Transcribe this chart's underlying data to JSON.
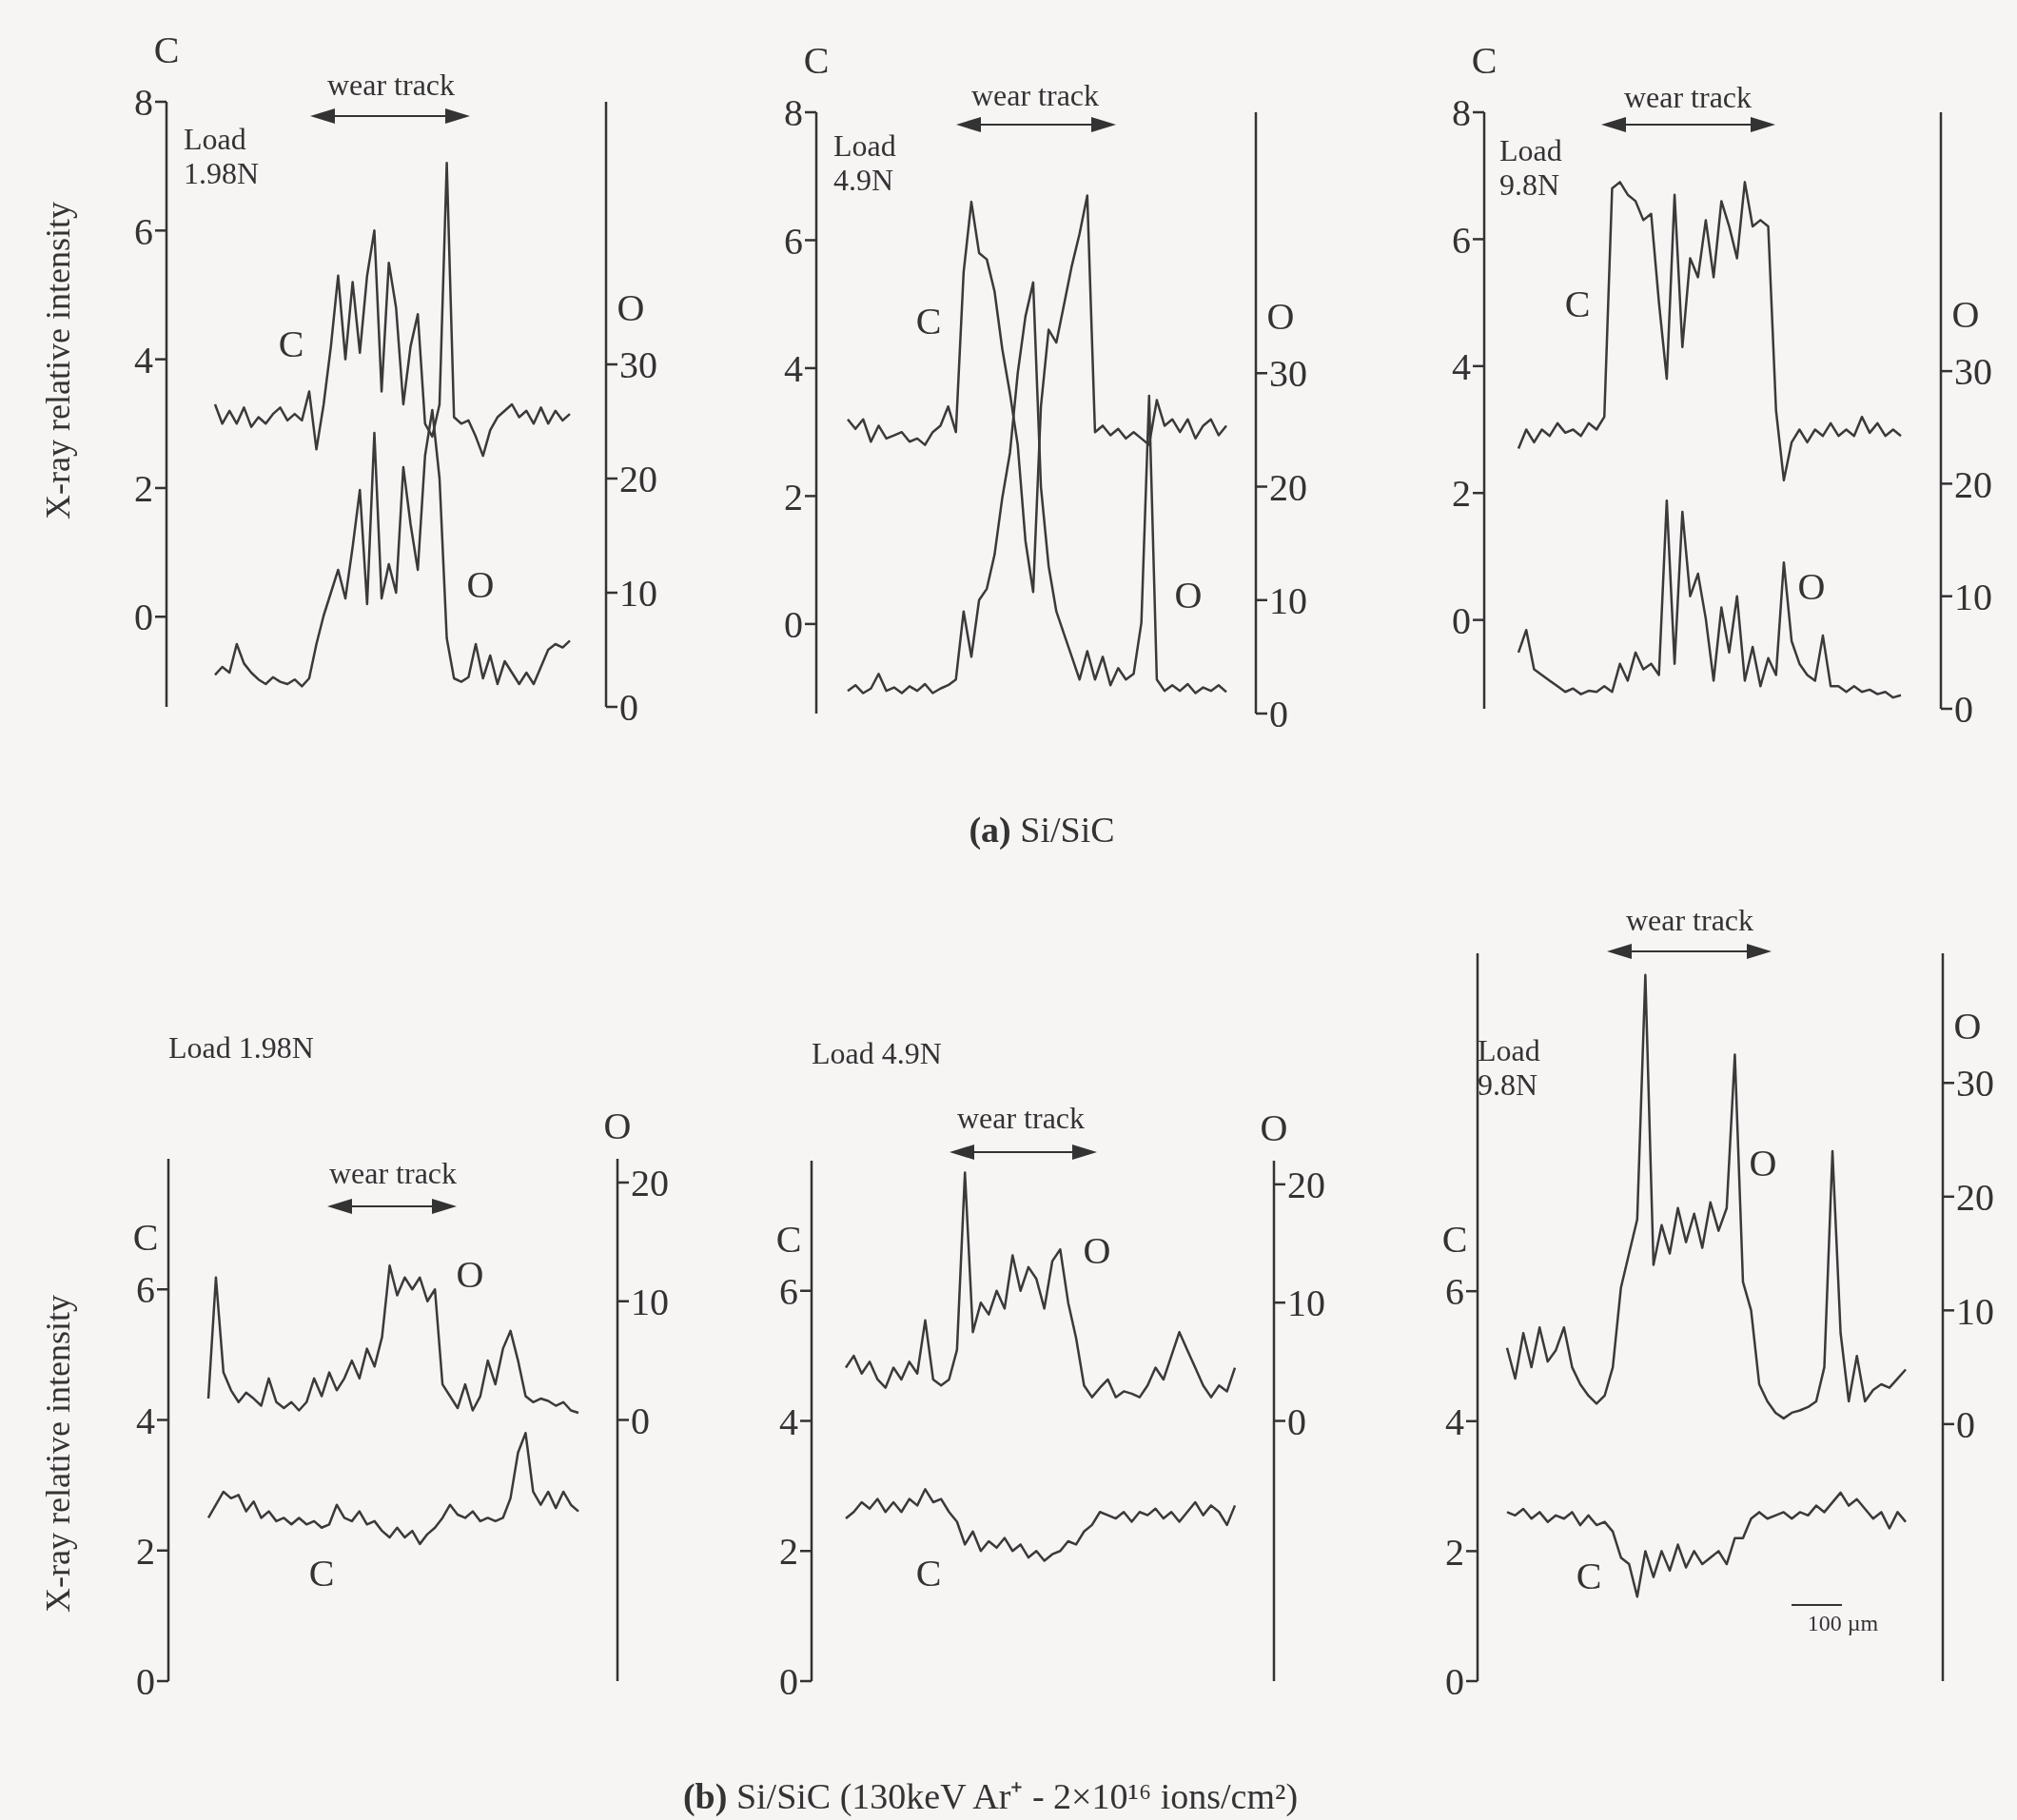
{
  "chart_data": [
    {
      "type": "line",
      "ylabel": "C",
      "y2label": "O",
      "ylim": [
        -1.4,
        8
      ],
      "yticks": [
        0,
        2,
        4,
        6,
        8
      ],
      "y2lim": [
        0,
        53
      ],
      "y2ticks": [
        0,
        10,
        20,
        30
      ],
      "categories": [
        null,
        null,
        null,
        null,
        null,
        null,
        null,
        null,
        null,
        null,
        null,
        null,
        null,
        null,
        null,
        null,
        null,
        null,
        null,
        null,
        null,
        null,
        null,
        null,
        null,
        null,
        null,
        null,
        null,
        null,
        null,
        null,
        null,
        null,
        null,
        null,
        null,
        null,
        null,
        null,
        null,
        null,
        null,
        null,
        null,
        null,
        null,
        null,
        null,
        null
      ],
      "series": [
        {
          "name": "C",
          "color": "#3a3a3a",
          "values": [
            3.3,
            3.0,
            3.2,
            3.0,
            3.25,
            2.95,
            3.1,
            3.0,
            3.15,
            3.25,
            3.05,
            3.15,
            3.05,
            3.5,
            2.6,
            3.3,
            4.2,
            5.3,
            4.0,
            5.2,
            4.1,
            5.3,
            6.0,
            3.5,
            5.5,
            4.8,
            3.3,
            4.2,
            4.7,
            3.0,
            2.8,
            3.3,
            7.05,
            3.1,
            3.0,
            3.05,
            2.8,
            2.5,
            2.9,
            3.1,
            3.2,
            3.3,
            3.1,
            3.2,
            3.0,
            3.25,
            3.0,
            3.2,
            3.05,
            3.15
          ]
        },
        {
          "name": "O",
          "color": "#3a3a3a",
          "axis": "y2",
          "values": [
            2.8,
            3.5,
            3.0,
            5.5,
            3.8,
            3.0,
            2.4,
            2.0,
            2.6,
            2.2,
            2.0,
            2.4,
            1.8,
            2.5,
            5.5,
            8.0,
            10.0,
            12.0,
            9.5,
            14.0,
            19.0,
            9.0,
            24.0,
            9.5,
            12.5,
            10.0,
            21.0,
            16.0,
            12.0,
            22.0,
            26.0,
            20.0,
            6.0,
            2.5,
            2.2,
            2.6,
            5.5,
            2.5,
            4.5,
            2.0,
            4.0,
            3.0,
            2.0,
            3.0,
            2.0,
            3.5,
            5.0,
            5.5,
            5.2,
            5.8
          ]
        }
      ],
      "annotations": [
        "wear track",
        "Load 1.98N",
        "X-ray relative intensity"
      ]
    },
    {
      "type": "line",
      "ylabel": "C",
      "y2label": "O",
      "ylim": [
        -1.4,
        8
      ],
      "yticks": [
        0,
        2,
        4,
        6,
        8
      ],
      "y2lim": [
        0,
        53
      ],
      "y2ticks": [
        0,
        10,
        20,
        30
      ],
      "categories": [
        null,
        null,
        null,
        null,
        null,
        null,
        null,
        null,
        null,
        null,
        null,
        null,
        null,
        null,
        null,
        null,
        null,
        null,
        null,
        null,
        null,
        null,
        null,
        null,
        null,
        null,
        null,
        null,
        null,
        null,
        null,
        null,
        null,
        null,
        null,
        null,
        null,
        null,
        null,
        null,
        null,
        null,
        null,
        null,
        null,
        null,
        null,
        null,
        null,
        null
      ],
      "series": [
        {
          "name": "C",
          "color": "#3a3a3a",
          "values": [
            3.2,
            3.05,
            3.2,
            2.85,
            3.1,
            2.9,
            2.95,
            3.0,
            2.85,
            2.9,
            2.8,
            3.0,
            3.1,
            3.4,
            3.0,
            5.5,
            6.6,
            5.8,
            5.7,
            5.2,
            4.3,
            3.6,
            2.8,
            1.3,
            0.5,
            3.4,
            4.6,
            4.4,
            5.0,
            5.6,
            6.1,
            6.7,
            3.0,
            3.1,
            2.95,
            3.05,
            2.9,
            3.0,
            2.9,
            2.8,
            3.5,
            3.1,
            3.2,
            3.0,
            3.2,
            2.9,
            3.1,
            3.2,
            2.95,
            3.1
          ]
        },
        {
          "name": "O",
          "color": "#3a3a3a",
          "axis": "y2",
          "values": [
            2.0,
            2.5,
            1.8,
            2.2,
            3.5,
            2.0,
            2.3,
            1.8,
            2.4,
            2.0,
            2.6,
            1.8,
            2.2,
            2.5,
            3.0,
            9.0,
            5.0,
            10.0,
            11.0,
            14.0,
            19.0,
            23.0,
            30.0,
            35.0,
            38.0,
            20.0,
            13.0,
            9.0,
            7.0,
            5.0,
            3.0,
            5.5,
            3.0,
            5.0,
            2.5,
            4.0,
            3.0,
            3.5,
            8.0,
            28.0,
            3.0,
            2.0,
            2.5,
            2.0,
            2.6,
            1.8,
            2.3,
            2.0,
            2.5,
            1.9
          ]
        }
      ],
      "annotations": [
        "wear track",
        "Load 4.9N",
        "(a) Si/SiC"
      ]
    },
    {
      "type": "line",
      "ylabel": "C",
      "y2label": "O",
      "ylim": [
        -1.4,
        8
      ],
      "yticks": [
        0,
        2,
        4,
        6,
        8
      ],
      "y2lim": [
        0,
        53
      ],
      "y2ticks": [
        0,
        10,
        20,
        30
      ],
      "categories": [
        null,
        null,
        null,
        null,
        null,
        null,
        null,
        null,
        null,
        null,
        null,
        null,
        null,
        null,
        null,
        null,
        null,
        null,
        null,
        null,
        null,
        null,
        null,
        null,
        null,
        null,
        null,
        null,
        null,
        null,
        null,
        null,
        null,
        null,
        null,
        null,
        null,
        null,
        null,
        null,
        null,
        null,
        null,
        null,
        null,
        null,
        null,
        null,
        null,
        null
      ],
      "series": [
        {
          "name": "C",
          "color": "#3a3a3a",
          "values": [
            2.7,
            3.0,
            2.8,
            3.0,
            2.9,
            3.1,
            2.95,
            3.0,
            2.9,
            3.1,
            3.0,
            3.2,
            6.8,
            6.9,
            6.7,
            6.6,
            6.3,
            6.4,
            5.0,
            3.8,
            6.7,
            4.3,
            5.7,
            5.4,
            6.3,
            5.4,
            6.6,
            6.2,
            5.7,
            6.9,
            6.2,
            6.3,
            6.2,
            3.3,
            2.2,
            2.8,
            3.0,
            2.8,
            3.0,
            2.9,
            3.1,
            2.9,
            3.0,
            2.9,
            3.2,
            2.95,
            3.1,
            2.9,
            3.0,
            2.9
          ]
        },
        {
          "name": "O",
          "color": "#3a3a3a",
          "axis": "y2",
          "values": [
            5.0,
            7.0,
            3.5,
            3.0,
            2.5,
            2.0,
            1.5,
            1.8,
            1.3,
            1.6,
            1.5,
            2.0,
            1.5,
            4.0,
            2.5,
            5.0,
            3.5,
            4.0,
            3.0,
            18.5,
            4.0,
            17.5,
            10.0,
            12.0,
            8.0,
            2.5,
            9.0,
            5.0,
            10.0,
            2.5,
            5.5,
            2.0,
            4.5,
            3.0,
            13.0,
            6.0,
            4.0,
            3.0,
            2.5,
            6.5,
            2.0,
            2.0,
            1.5,
            2.0,
            1.5,
            1.7,
            1.3,
            1.5,
            1.0,
            1.2
          ]
        }
      ],
      "annotations": [
        "wear track",
        "Load 9.8N"
      ]
    },
    {
      "type": "line",
      "ylabel": "C",
      "y2label": "O",
      "ylim": [
        0,
        8
      ],
      "yticks": [
        0,
        2,
        4,
        6
      ],
      "y2lim": [
        -22,
        22
      ],
      "y2ticks": [
        0,
        10,
        20
      ],
      "categories": [
        null,
        null,
        null,
        null,
        null,
        null,
        null,
        null,
        null,
        null,
        null,
        null,
        null,
        null,
        null,
        null,
        null,
        null,
        null,
        null,
        null,
        null,
        null,
        null,
        null,
        null,
        null,
        null,
        null,
        null,
        null,
        null,
        null,
        null,
        null,
        null,
        null,
        null,
        null,
        null,
        null,
        null,
        null,
        null,
        null,
        null,
        null,
        null,
        null,
        null
      ],
      "series": [
        {
          "name": "C",
          "color": "#3a3a3a",
          "values": [
            2.5,
            2.7,
            2.9,
            2.8,
            2.85,
            2.6,
            2.75,
            2.5,
            2.6,
            2.45,
            2.5,
            2.4,
            2.5,
            2.4,
            2.45,
            2.35,
            2.4,
            2.7,
            2.5,
            2.45,
            2.6,
            2.4,
            2.45,
            2.3,
            2.2,
            2.35,
            2.2,
            2.3,
            2.1,
            2.25,
            2.35,
            2.5,
            2.7,
            2.55,
            2.5,
            2.6,
            2.45,
            2.5,
            2.45,
            2.5,
            2.8,
            3.5,
            3.8,
            2.9,
            2.7,
            2.9,
            2.65,
            2.9,
            2.7,
            2.6
          ]
        },
        {
          "name": "O",
          "color": "#3a3a3a",
          "axis": "y2",
          "values": [
            1.8,
            12.0,
            4.0,
            2.5,
            1.5,
            2.3,
            1.8,
            1.2,
            3.5,
            1.5,
            1.0,
            1.5,
            0.8,
            1.5,
            3.5,
            2.0,
            4.0,
            2.5,
            3.5,
            5.0,
            3.5,
            6.0,
            4.5,
            7.0,
            13.0,
            10.5,
            12.0,
            11.0,
            12.0,
            10.0,
            11.0,
            3.0,
            2.0,
            1.0,
            3.0,
            0.8,
            2.0,
            5.0,
            3.0,
            6.0,
            7.5,
            5.0,
            2.0,
            1.5,
            1.8,
            1.6,
            1.2,
            1.5,
            0.8,
            0.6
          ]
        }
      ],
      "annotations": [
        "wear track",
        "Load 1.98N",
        "X-ray relative intensity"
      ]
    },
    {
      "type": "line",
      "ylabel": "C",
      "y2label": "O",
      "ylim": [
        0,
        8
      ],
      "yticks": [
        0,
        2,
        4,
        6
      ],
      "y2lim": [
        -22,
        22
      ],
      "y2ticks": [
        0,
        10,
        20
      ],
      "categories": [
        null,
        null,
        null,
        null,
        null,
        null,
        null,
        null,
        null,
        null,
        null,
        null,
        null,
        null,
        null,
        null,
        null,
        null,
        null,
        null,
        null,
        null,
        null,
        null,
        null,
        null,
        null,
        null,
        null,
        null,
        null,
        null,
        null,
        null,
        null,
        null,
        null,
        null,
        null,
        null,
        null,
        null,
        null,
        null,
        null,
        null,
        null,
        null,
        null,
        null
      ],
      "series": [
        {
          "name": "C",
          "color": "#3a3a3a",
          "values": [
            2.5,
            2.6,
            2.75,
            2.65,
            2.8,
            2.6,
            2.75,
            2.6,
            2.8,
            2.7,
            2.95,
            2.75,
            2.8,
            2.6,
            2.45,
            2.1,
            2.3,
            2.0,
            2.15,
            2.05,
            2.2,
            2.0,
            2.1,
            1.9,
            2.0,
            1.85,
            1.95,
            2.0,
            2.15,
            2.1,
            2.3,
            2.4,
            2.6,
            2.55,
            2.5,
            2.6,
            2.45,
            2.6,
            2.55,
            2.65,
            2.5,
            2.6,
            2.45,
            2.6,
            2.75,
            2.55,
            2.7,
            2.6,
            2.4,
            2.7
          ]
        },
        {
          "name": "O",
          "color": "#3a3a3a",
          "axis": "y2",
          "values": [
            4.5,
            5.5,
            4.0,
            5.0,
            3.5,
            2.8,
            4.5,
            3.5,
            5.0,
            4.0,
            8.5,
            3.5,
            3.0,
            3.5,
            6.0,
            21.0,
            7.5,
            10.0,
            9.0,
            11.0,
            9.5,
            14.0,
            11.0,
            13.0,
            12.0,
            9.5,
            13.5,
            14.5,
            10.0,
            7.0,
            3.0,
            2.0,
            2.8,
            3.5,
            2.0,
            2.5,
            2.3,
            2.0,
            3.0,
            4.5,
            3.5,
            5.5,
            7.5,
            6.0,
            4.5,
            3.0,
            2.0,
            3.0,
            2.5,
            4.5
          ]
        }
      ],
      "annotations": [
        "wear track",
        "Load 4.9N",
        "(b) Si/SiC (130keV Ar⁺ - 2×10¹⁶ ions/cm²)"
      ]
    },
    {
      "type": "line",
      "ylabel": "C",
      "y2label": "O",
      "ylim": [
        0,
        11.2
      ],
      "yticks": [
        0,
        2,
        4,
        6
      ],
      "y2lim": [
        -22.6,
        41.4
      ],
      "y2ticks": [
        0,
        10,
        20,
        30
      ],
      "categories": [
        null,
        null,
        null,
        null,
        null,
        null,
        null,
        null,
        null,
        null,
        null,
        null,
        null,
        null,
        null,
        null,
        null,
        null,
        null,
        null,
        null,
        null,
        null,
        null,
        null,
        null,
        null,
        null,
        null,
        null,
        null,
        null,
        null,
        null,
        null,
        null,
        null,
        null,
        null,
        null,
        null,
        null,
        null,
        null,
        null,
        null,
        null,
        null,
        null,
        null
      ],
      "series": [
        {
          "name": "C",
          "color": "#3a3a3a",
          "values": [
            2.6,
            2.55,
            2.65,
            2.5,
            2.6,
            2.45,
            2.55,
            2.5,
            2.6,
            2.4,
            2.55,
            2.4,
            2.45,
            2.3,
            1.9,
            1.8,
            1.3,
            2.0,
            1.6,
            2.0,
            1.7,
            2.1,
            1.75,
            2.0,
            1.8,
            1.9,
            2.0,
            1.8,
            2.2,
            2.2,
            2.5,
            2.6,
            2.5,
            2.55,
            2.6,
            2.5,
            2.6,
            2.55,
            2.7,
            2.6,
            2.75,
            2.9,
            2.7,
            2.8,
            2.65,
            2.5,
            2.6,
            2.35,
            2.6,
            2.45
          ]
        },
        {
          "name": "O",
          "color": "#3a3a3a",
          "axis": "y2",
          "values": [
            6.7,
            4.0,
            8.0,
            5.0,
            8.5,
            5.5,
            6.5,
            8.5,
            5.0,
            3.5,
            2.5,
            1.8,
            2.5,
            5.0,
            12.0,
            15.0,
            18.0,
            39.5,
            14.0,
            17.5,
            15.0,
            19.0,
            16.0,
            18.5,
            15.5,
            19.5,
            17.0,
            19.0,
            32.5,
            12.5,
            10.0,
            3.5,
            2.0,
            1.0,
            0.5,
            1.0,
            1.2,
            1.5,
            2.0,
            5.0,
            24.0,
            8.0,
            2.0,
            6.0,
            2.0,
            3.0,
            3.5,
            3.2,
            4.0,
            4.8
          ]
        }
      ],
      "annotations": [
        "wear track",
        "Load 9.8N",
        "100 µm"
      ]
    }
  ]
}
